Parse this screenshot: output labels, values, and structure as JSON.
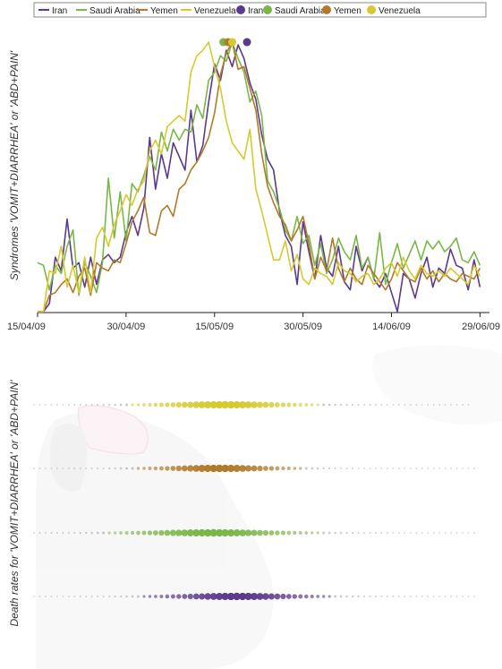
{
  "colors": {
    "Iran": "#5b3a8c",
    "Saudi Arabia": "#7ab648",
    "Yemen": "#b07a2a",
    "Venezuela": "#d6c932",
    "axis": "#222222",
    "dotTrail": "#9a9a9a"
  },
  "legend": {
    "placement": "top",
    "line_entries": [
      "Iran",
      "Saudi Arabia",
      "Yemen",
      "Venezuela"
    ],
    "dot_entries": [
      "Iran",
      "Saudi Arabia",
      "Yemen",
      "Venezuela"
    ]
  },
  "chart_data": [
    {
      "type": "line",
      "title": "",
      "xlabel": "",
      "ylabel": "Syndromes 'VOMIT+DIARRHEA' or 'ABD+PAIN'",
      "x_tick_labels": [
        "15/04/09",
        "30/04/09",
        "15/05/09",
        "30/05/09",
        "14/06/09",
        "29/06/09"
      ],
      "x_tick_days": [
        0,
        15,
        30,
        45,
        60,
        75
      ],
      "x_range_days": [
        0,
        76
      ],
      "y_range": [
        0,
        1
      ],
      "grid": false,
      "series": [
        {
          "name": "Iran",
          "x_days": [
            0,
            1,
            2,
            3,
            4,
            5,
            6,
            7,
            8,
            9,
            10,
            11,
            12,
            13,
            14,
            15,
            16,
            17,
            18,
            19,
            20,
            21,
            22,
            23,
            24,
            25,
            26,
            27,
            28,
            29,
            30,
            31,
            32,
            33,
            34,
            35,
            36,
            37,
            38,
            39,
            40,
            41,
            42,
            43,
            44,
            45,
            46,
            47,
            48,
            49,
            50,
            51,
            52,
            53,
            54,
            55,
            56,
            57,
            58,
            59,
            60,
            61,
            62,
            63,
            64,
            65,
            66,
            67,
            68,
            69,
            70,
            71,
            72,
            73,
            74,
            75
          ],
          "values": [
            0.0,
            0.0,
            0.03,
            0.2,
            0.15,
            0.34,
            0.16,
            0.18,
            0.09,
            0.2,
            0.1,
            0.19,
            0.21,
            0.18,
            0.2,
            0.29,
            0.35,
            0.28,
            0.38,
            0.64,
            0.45,
            0.58,
            0.49,
            0.62,
            0.57,
            0.52,
            0.74,
            0.55,
            0.61,
            0.77,
            0.91,
            0.85,
            0.96,
            0.9,
            0.98,
            0.93,
            0.84,
            0.78,
            0.65,
            0.56,
            0.52,
            0.37,
            0.28,
            0.24,
            0.1,
            0.33,
            0.22,
            0.12,
            0.28,
            0.16,
            0.13,
            0.24,
            0.11,
            0.08,
            0.24,
            0.15,
            0.2,
            0.12,
            0.09,
            0.14,
            0.07,
            0.0,
            0.14,
            0.12,
            0.05,
            0.14,
            0.2,
            0.09,
            0.16,
            0.14,
            0.23,
            0.17,
            0.16,
            0.08,
            0.19,
            0.09
          ]
        },
        {
          "name": "Saudi Arabia",
          "x_days": [
            0,
            1,
            2,
            3,
            4,
            5,
            6,
            7,
            8,
            9,
            10,
            11,
            12,
            13,
            14,
            15,
            16,
            17,
            18,
            19,
            20,
            21,
            22,
            23,
            24,
            25,
            26,
            27,
            28,
            29,
            30,
            31,
            32,
            33,
            34,
            35,
            36,
            37,
            38,
            39,
            40,
            41,
            42,
            43,
            44,
            45,
            46,
            47,
            48,
            49,
            50,
            51,
            52,
            53,
            54,
            55,
            56,
            57,
            58,
            59,
            60,
            61,
            62,
            63,
            64,
            65,
            66,
            67,
            68,
            69,
            70,
            71,
            72,
            73,
            74,
            75
          ],
          "values": [
            0.18,
            0.17,
            0.08,
            0.17,
            0.14,
            0.24,
            0.3,
            0.06,
            0.18,
            0.13,
            0.07,
            0.18,
            0.49,
            0.27,
            0.44,
            0.26,
            0.47,
            0.44,
            0.5,
            0.57,
            0.52,
            0.66,
            0.59,
            0.67,
            0.63,
            0.67,
            0.66,
            0.76,
            0.71,
            0.85,
            0.88,
            0.94,
            0.92,
            0.99,
            0.93,
            0.88,
            0.77,
            0.81,
            0.72,
            0.48,
            0.44,
            0.38,
            0.3,
            0.26,
            0.35,
            0.25,
            0.28,
            0.17,
            0.25,
            0.14,
            0.19,
            0.27,
            0.22,
            0.19,
            0.28,
            0.16,
            0.2,
            0.12,
            0.29,
            0.1,
            0.18,
            0.25,
            0.16,
            0.21,
            0.26,
            0.19,
            0.26,
            0.23,
            0.26,
            0.22,
            0.24,
            0.27,
            0.19,
            0.18,
            0.22,
            0.17
          ]
        },
        {
          "name": "Yemen",
          "x_days": [
            0,
            1,
            2,
            3,
            4,
            5,
            6,
            7,
            8,
            9,
            10,
            11,
            12,
            13,
            14,
            15,
            16,
            17,
            18,
            19,
            20,
            21,
            22,
            23,
            24,
            25,
            26,
            27,
            28,
            29,
            30,
            31,
            32,
            33,
            34,
            35,
            36,
            37,
            38,
            39,
            40,
            41,
            42,
            43,
            44,
            45,
            46,
            47,
            48,
            49,
            50,
            51,
            52,
            53,
            54,
            55,
            56,
            57,
            58,
            59,
            60,
            61,
            62,
            63,
            64,
            65,
            66,
            67,
            68,
            69,
            70,
            71,
            72,
            73,
            74,
            75
          ],
          "values": [
            0.0,
            0.0,
            0.06,
            0.07,
            0.1,
            0.12,
            0.07,
            0.13,
            0.16,
            0.06,
            0.18,
            0.16,
            0.15,
            0.19,
            0.18,
            0.25,
            0.33,
            0.37,
            0.42,
            0.29,
            0.28,
            0.37,
            0.39,
            0.35,
            0.45,
            0.47,
            0.52,
            0.55,
            0.59,
            0.64,
            0.73,
            0.87,
            0.95,
            0.99,
            0.89,
            0.9,
            0.82,
            0.74,
            0.58,
            0.46,
            0.4,
            0.35,
            0.32,
            0.26,
            0.3,
            0.35,
            0.25,
            0.12,
            0.2,
            0.15,
            0.27,
            0.16,
            0.11,
            0.16,
            0.12,
            0.1,
            0.17,
            0.14,
            0.11,
            0.08,
            0.12,
            0.18,
            0.15,
            0.12,
            0.11,
            0.16,
            0.12,
            0.15,
            0.11,
            0.14,
            0.12,
            0.11,
            0.14,
            0.13,
            0.12,
            0.16
          ]
        },
        {
          "name": "Venezuela",
          "x_days": [
            0,
            1,
            2,
            3,
            4,
            5,
            6,
            7,
            8,
            9,
            10,
            11,
            12,
            13,
            14,
            15,
            16,
            17,
            18,
            19,
            20,
            21,
            22,
            23,
            24,
            25,
            26,
            27,
            28,
            29,
            30,
            31,
            32,
            33,
            34,
            35,
            36,
            37,
            38,
            39,
            40,
            41,
            42,
            43,
            44,
            45,
            46,
            47,
            48,
            49,
            50,
            51,
            52,
            53,
            54,
            55,
            56,
            57,
            58,
            59,
            60,
            61,
            62,
            63,
            64,
            65,
            66,
            67,
            68,
            69,
            70,
            71,
            72,
            73,
            74,
            75
          ],
          "values": [
            0.0,
            0.0,
            0.15,
            0.14,
            0.24,
            0.09,
            0.17,
            0.07,
            0.2,
            0.07,
            0.27,
            0.31,
            0.24,
            0.32,
            0.37,
            0.43,
            0.39,
            0.45,
            0.48,
            0.59,
            0.63,
            0.58,
            0.68,
            0.7,
            0.72,
            0.7,
            0.88,
            0.94,
            0.96,
            0.99,
            0.9,
            0.82,
            0.7,
            0.62,
            0.59,
            0.56,
            0.67,
            0.45,
            0.37,
            0.28,
            0.19,
            0.19,
            0.26,
            0.15,
            0.21,
            0.12,
            0.1,
            0.16,
            0.14,
            0.13,
            0.1,
            0.18,
            0.15,
            0.14,
            0.11,
            0.13,
            0.14,
            0.1,
            0.12,
            0.16,
            0.18,
            0.13,
            0.2,
            0.15,
            0.12,
            0.17,
            0.14,
            0.13,
            0.15,
            0.13,
            0.16,
            0.14,
            0.12,
            0.1,
            0.17,
            0.13
          ]
        }
      ],
      "peak_markers": [
        {
          "name": "Saudi Arabia",
          "x_day": 31.5,
          "value": 0.99
        },
        {
          "name": "Yemen",
          "x_day": 32.3,
          "value": 0.99
        },
        {
          "name": "Venezuela",
          "x_day": 33.0,
          "value": 0.99
        },
        {
          "name": "Iran",
          "x_day": 35.5,
          "value": 0.99
        }
      ]
    },
    {
      "type": "scatter",
      "title": "",
      "xlabel": "",
      "ylabel": "Death rates for 'VOMIT+DIARRHEA' or 'ABD+PAIN'",
      "x_range_days": [
        0,
        76
      ],
      "note_on_encoding": "",
      "rows": [
        {
          "name": "Venezuela",
          "start_day": 0,
          "end_day": 75,
          "peak_day": 33,
          "spread_days": 9
        },
        {
          "name": "Yemen",
          "start_day": 0,
          "end_day": 76,
          "peak_day": 32,
          "spread_days": 8
        },
        {
          "name": "Saudi Arabia",
          "start_day": 0,
          "end_day": 76,
          "peak_day": 31,
          "spread_days": 10
        },
        {
          "name": "Iran",
          "start_day": 0,
          "end_day": 76,
          "peak_day": 35,
          "spread_days": 9
        }
      ]
    }
  ]
}
